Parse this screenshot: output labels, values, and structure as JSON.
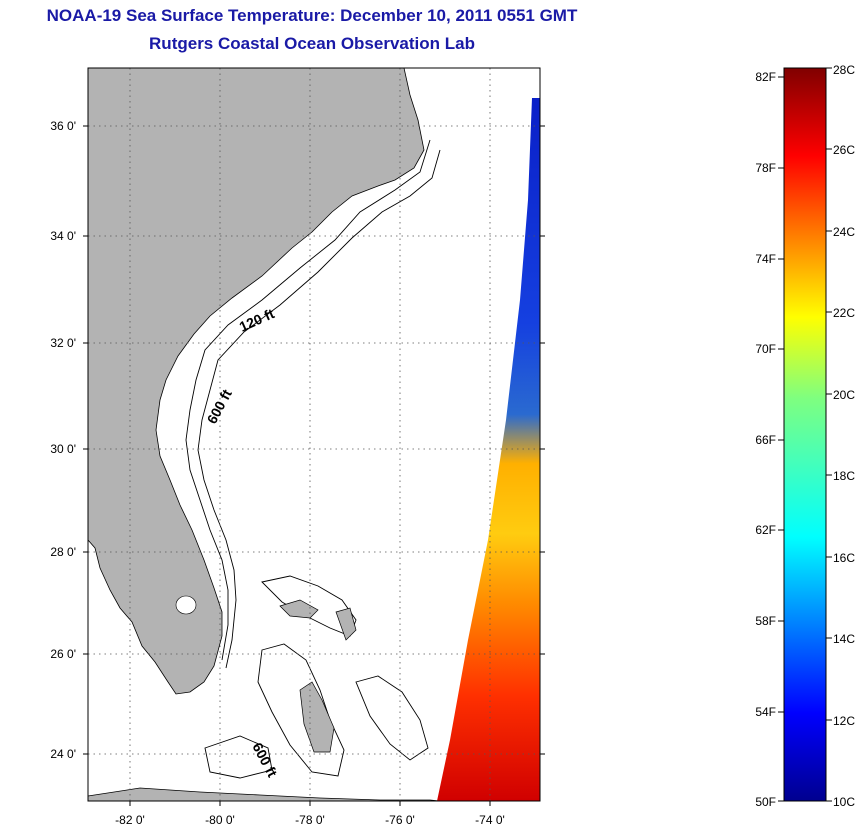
{
  "header": {
    "title": "NOAA-19 Sea Surface Temperature:  December 10, 2011 0551 GMT",
    "subtitle": "Rutgers Coastal Ocean Observation Lab"
  },
  "map": {
    "lat_labels": [
      "36 0'",
      "34 0'",
      "32 0'",
      "30 0'",
      "28 0'",
      "26 0'",
      "24 0'"
    ],
    "lon_labels": [
      "-82 0'",
      "-80 0'",
      "-78 0'",
      "-76 0'",
      "-74 0'"
    ],
    "isobaths": [
      "120 ft",
      "600 ft",
      "600 ft"
    ],
    "colors": {
      "land": "#b3b3b3",
      "ocean": "#ffffff",
      "grid": "#000000"
    }
  },
  "colorbar": {
    "fahrenheit": [
      "82F",
      "78F",
      "74F",
      "70F",
      "66F",
      "62F",
      "58F",
      "54F",
      "50F"
    ],
    "celsius": [
      "28C",
      "26C",
      "24C",
      "22C",
      "20C",
      "18C",
      "16C",
      "14C",
      "12C",
      "10C"
    ],
    "range_c": [
      10,
      28
    ]
  }
}
